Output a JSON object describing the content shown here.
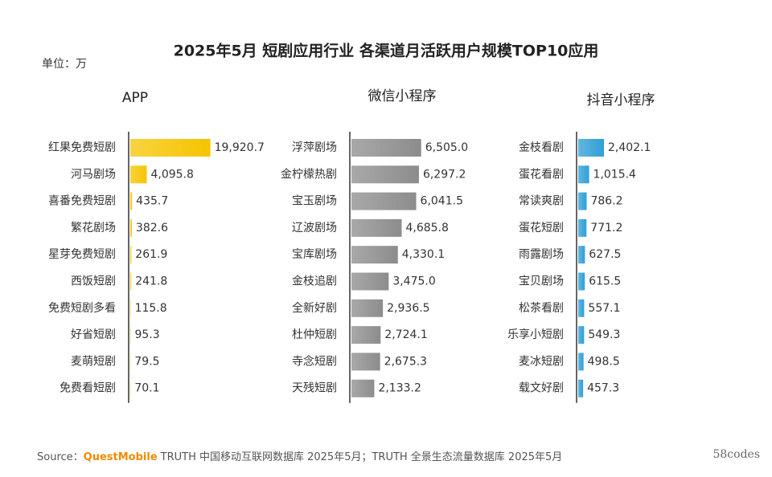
{
  "header": {
    "title": "2025年5月 短剧应用行业 各渠道月活跃用户规模TOP10应用",
    "unit": "单位：万"
  },
  "chart_data": [
    {
      "type": "bar",
      "orientation": "horizontal",
      "title": "APP",
      "color": "#f5c400",
      "xlim": [
        0,
        20000
      ],
      "categories": [
        "红果免费短剧",
        "河马剧场",
        "喜番免费短剧",
        "繁花剧场",
        "星芽免费短剧",
        "西饭短剧",
        "免费短剧多看",
        "好省短剧",
        "麦萌短剧",
        "免费看短剧"
      ],
      "values": [
        19920.7,
        4095.8,
        435.7,
        382.6,
        261.9,
        241.8,
        115.8,
        95.3,
        79.5,
        70.1
      ],
      "value_labels": [
        "19,920.7",
        "4,095.8",
        "435.7",
        "382.6",
        "261.9",
        "241.8",
        "115.8",
        "95.3",
        "79.5",
        "70.1"
      ]
    },
    {
      "type": "bar",
      "orientation": "horizontal",
      "title": "微信小程序",
      "color": "#8c8c8c",
      "xlim": [
        0,
        7500
      ],
      "categories": [
        "浮萍剧场",
        "金柠檬热剧",
        "宝玉剧场",
        "辽波剧场",
        "宝库剧场",
        "金枝追剧",
        "全新好剧",
        "杜仲短剧",
        "寺念短剧",
        "天残短剧"
      ],
      "values": [
        6505.0,
        6297.2,
        6041.5,
        4685.8,
        4330.1,
        3475.0,
        2936.5,
        2724.1,
        2675.3,
        2133.2
      ],
      "value_labels": [
        "6,505.0",
        "6,297.2",
        "6,041.5",
        "4,685.8",
        "4,330.1",
        "3,475.0",
        "2,936.5",
        "2,724.1",
        "2,675.3",
        "2,133.2"
      ]
    },
    {
      "type": "bar",
      "orientation": "horizontal",
      "title": "抖音小程序",
      "color": "#2e9fd6",
      "xlim": [
        0,
        7500
      ],
      "categories": [
        "金枝看剧",
        "蛋花看剧",
        "常读爽剧",
        "蛋花短剧",
        "雨露剧场",
        "宝贝剧场",
        "松茶看剧",
        "乐享小短剧",
        "麦冰短剧",
        "载文好剧"
      ],
      "values": [
        2402.1,
        1015.4,
        786.2,
        771.2,
        627.5,
        615.5,
        557.1,
        549.3,
        498.5,
        457.3
      ],
      "value_labels": [
        "2,402.1",
        "1,015.4",
        "786.2",
        "771.2",
        "627.5",
        "615.5",
        "557.1",
        "549.3",
        "498.5",
        "457.3"
      ]
    }
  ],
  "footer": {
    "source_label": "Source：",
    "brand": "QuestMobile",
    "text": "TRUTH 中国移动互联网数据库 2025年5月；TRUTH 全景生态流量数据库 2025年5月",
    "watermark": "58codes"
  }
}
